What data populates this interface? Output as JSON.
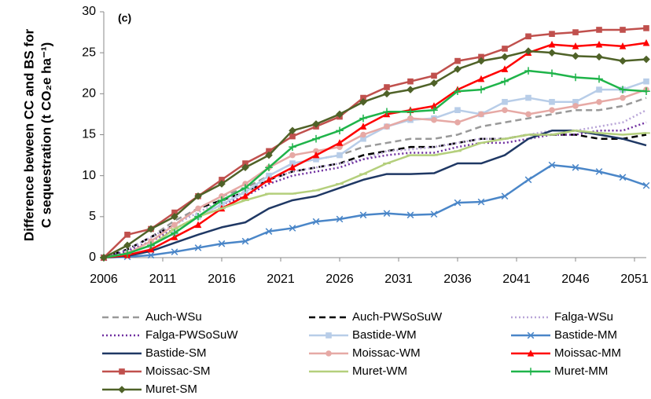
{
  "chart_data": {
    "type": "line",
    "annotation": "(c)",
    "ylabel": [
      "Difference beween CC and BS for",
      "C sequestration (t CO₂e ha⁻¹)"
    ],
    "x": [
      2006,
      2008,
      2010,
      2012,
      2014,
      2016,
      2018,
      2020,
      2022,
      2024,
      2026,
      2028,
      2030,
      2032,
      2034,
      2036,
      2038,
      2040,
      2042,
      2044,
      2046,
      2048,
      2050,
      2052
    ],
    "xlim": [
      2006,
      2052
    ],
    "xticks": [
      2006,
      2011,
      2016,
      2021,
      2026,
      2031,
      2036,
      2041,
      2046,
      2051
    ],
    "ylim": [
      0,
      30
    ],
    "yticks": [
      0,
      5,
      10,
      15,
      20,
      25,
      30
    ],
    "series": [
      {
        "name": "Auch-WSu",
        "color": "#999999",
        "dash": "8,5",
        "marker": "none",
        "values": [
          0,
          1,
          2.5,
          4.5,
          6,
          7.5,
          8.5,
          10,
          11.5,
          12,
          12.5,
          13.5,
          14,
          14.5,
          14.5,
          15,
          16,
          16.5,
          17,
          17.5,
          18,
          18,
          18.5,
          19.5
        ]
      },
      {
        "name": "Auch-PWSoSuW",
        "color": "#000000",
        "dash": "8,5",
        "marker": "none",
        "values": [
          0,
          1,
          2.5,
          4,
          6,
          7,
          8,
          9.5,
          10.5,
          11,
          11.5,
          12.5,
          13,
          13.5,
          13.5,
          14,
          14.5,
          14.5,
          15,
          15,
          15,
          14.5,
          14.5,
          15
        ]
      },
      {
        "name": "Falga-WSu",
        "color": "#b9a6d8",
        "dash": "2,3",
        "marker": "none",
        "values": [
          0,
          1,
          2.5,
          4,
          5.5,
          7,
          8,
          9.5,
          10.5,
          11,
          11.5,
          12,
          13,
          13.2,
          13.5,
          14,
          14.5,
          14.5,
          15,
          15.5,
          15.5,
          16,
          16.5,
          18
        ]
      },
      {
        "name": "Falga-PWSoSuW",
        "color": "#7030a0",
        "dash": "2,3",
        "marker": "none",
        "values": [
          0,
          0.8,
          2,
          3.5,
          5,
          6.5,
          7.5,
          9,
          10,
          10.5,
          11,
          12,
          12.5,
          12.8,
          12.8,
          13.5,
          14,
          14,
          14.5,
          15,
          15,
          15.5,
          15.5,
          16.5
        ]
      },
      {
        "name": "Bastide-WM",
        "color": "#b8cde8",
        "dash": "",
        "marker": "square",
        "values": [
          0,
          0.5,
          1.5,
          3,
          5,
          6.5,
          8,
          10,
          11.5,
          12,
          12.5,
          14.5,
          16,
          16.8,
          17,
          18,
          17.5,
          19,
          19.5,
          19,
          19,
          20.5,
          20.5,
          21.5
        ]
      },
      {
        "name": "Bastide-MM",
        "color": "#4a86c8",
        "dash": "",
        "marker": "x",
        "values": [
          0,
          0.1,
          0.3,
          0.7,
          1.2,
          1.7,
          2,
          3.2,
          3.6,
          4.4,
          4.7,
          5.2,
          5.4,
          5.2,
          5.3,
          6.7,
          6.8,
          7.5,
          9.5,
          11.3,
          11,
          10.5,
          9.8,
          8.8
        ]
      },
      {
        "name": "Bastide-SM",
        "color": "#1f3864",
        "dash": "",
        "marker": "none",
        "values": [
          0,
          0.2,
          0.8,
          1.8,
          2.8,
          3.7,
          4.3,
          6,
          7,
          7.5,
          8.5,
          9.5,
          10.2,
          10.2,
          10.3,
          11.5,
          11.5,
          12.5,
          14.5,
          15.5,
          15.5,
          15,
          14.5,
          13.7
        ]
      },
      {
        "name": "Moissac-WM",
        "color": "#e6a9a5",
        "dash": "",
        "marker": "circle",
        "values": [
          0,
          0.5,
          2,
          4,
          6,
          7.5,
          9,
          11,
          12.5,
          13,
          13.5,
          15,
          16,
          17,
          16.8,
          16.5,
          17.5,
          18,
          17.5,
          18,
          18.5,
          19,
          19.5,
          20.5
        ]
      },
      {
        "name": "Moissac-MM",
        "color": "#ff0000",
        "dash": "",
        "marker": "triangle",
        "values": [
          0,
          0.3,
          1,
          2.5,
          4,
          6,
          7.5,
          9.5,
          11,
          12.5,
          14,
          16,
          17.5,
          18,
          18.5,
          20.5,
          21.8,
          23,
          25,
          26,
          25.8,
          26,
          25.8,
          26.2
        ]
      },
      {
        "name": "Moissac-SM",
        "color": "#c0504d",
        "dash": "",
        "marker": "square",
        "values": [
          0,
          2.8,
          3.5,
          5.5,
          7.5,
          9.5,
          11.5,
          13,
          14.8,
          16,
          17.2,
          19.5,
          20.8,
          21.5,
          22.2,
          24,
          24.5,
          25.5,
          27,
          27.3,
          27.5,
          27.8,
          27.8,
          28
        ]
      },
      {
        "name": "Muret-WM",
        "color": "#b4cf7c",
        "dash": "",
        "marker": "minus",
        "values": [
          0,
          0.5,
          1.5,
          3.5,
          5,
          6,
          7,
          7.8,
          7.8,
          8.2,
          9,
          10.2,
          11.5,
          12.5,
          12.5,
          13,
          14,
          14.5,
          15,
          15,
          15.5,
          15.2,
          15,
          15.2
        ]
      },
      {
        "name": "Muret-MM",
        "color": "#1fb44a",
        "dash": "",
        "marker": "plus",
        "values": [
          0,
          0.5,
          1.5,
          3,
          5,
          7,
          8.5,
          11,
          13.5,
          14.5,
          15.5,
          17,
          17.8,
          17.8,
          18,
          20.3,
          20.5,
          21.5,
          22.8,
          22.5,
          22,
          21.8,
          20.5,
          20.3
        ]
      },
      {
        "name": "Muret-SM",
        "color": "#4f6228",
        "dash": "",
        "marker": "diamond",
        "values": [
          0,
          1.5,
          3.5,
          5,
          7.5,
          9,
          11,
          12.5,
          15.5,
          16.3,
          17.5,
          19,
          20,
          20.5,
          21.3,
          23,
          24,
          24.5,
          25.2,
          25,
          24.6,
          24.5,
          24,
          24.2
        ]
      }
    ]
  }
}
